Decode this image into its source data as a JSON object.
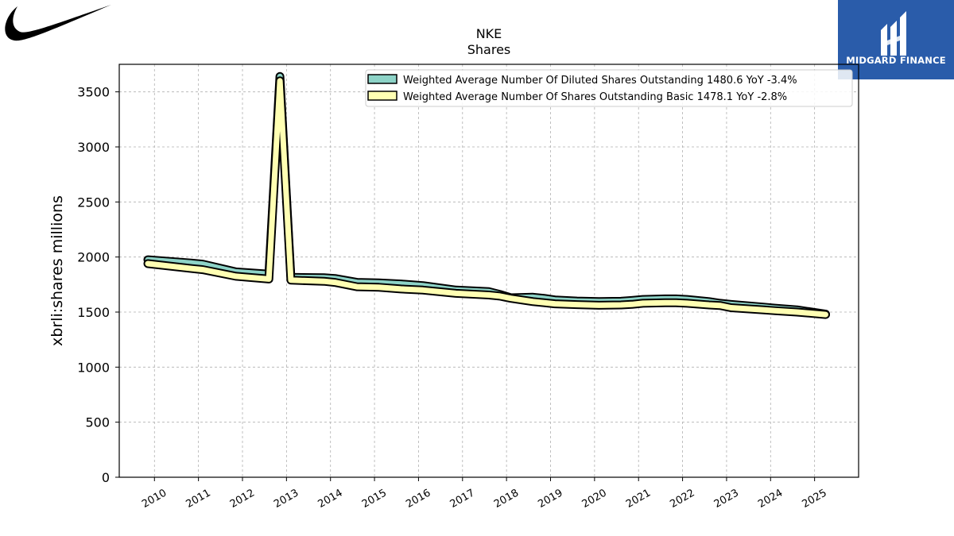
{
  "chart_data": {
    "type": "line",
    "title": "NKE",
    "subtitle": "Shares",
    "xlabel": "",
    "ylabel": "xbrli:shares millions",
    "ylim": [
      0,
      3750
    ],
    "xlim": [
      2009.2,
      2026.0
    ],
    "yticks": [
      0,
      500,
      1000,
      1500,
      2000,
      2500,
      3000,
      3500
    ],
    "xticks": [
      2010,
      2011,
      2012,
      2013,
      2014,
      2015,
      2016,
      2017,
      2018,
      2019,
      2020,
      2021,
      2022,
      2023,
      2024,
      2025
    ],
    "grid": true,
    "legend_position": "top-right",
    "series": [
      {
        "name": "Weighted Average Number Of Diluted Shares Outstanding",
        "legend_label": "Weighted Average Number Of Diluted Shares Outstanding  1480.6 YoY -3.4%",
        "color": "#8dd3c7",
        "x": [
          2009.85,
          2010.85,
          2011.1,
          2011.85,
          2012.6,
          2012.85,
          2013.1,
          2013.85,
          2014.1,
          2014.6,
          2015.1,
          2015.6,
          2016.1,
          2016.85,
          2017.6,
          2017.85,
          2018.1,
          2018.6,
          2018.85,
          2019.1,
          2019.6,
          2020.1,
          2020.6,
          2020.85,
          2021.1,
          2021.6,
          2021.85,
          2022.1,
          2022.6,
          2022.85,
          2023.1,
          2023.85,
          2024.1,
          2024.6,
          2025.25
        ],
        "y": [
          1975,
          1945,
          1935,
          1865,
          1845,
          3640,
          1815,
          1812,
          1805,
          1770,
          1765,
          1755,
          1740,
          1700,
          1685,
          1660,
          1630,
          1635,
          1625,
          1610,
          1600,
          1595,
          1598,
          1605,
          1615,
          1620,
          1620,
          1615,
          1595,
          1580,
          1570,
          1545,
          1535,
          1520,
          1481
        ]
      },
      {
        "name": "Weighted Average Number Of Shares Outstanding Basic",
        "legend_label": "Weighted Average Number Of Shares Outstanding Basic  1478.1 YoY -2.8%",
        "color": "#ffffb3",
        "x": [
          2009.85,
          2010.85,
          2011.1,
          2011.85,
          2012.6,
          2012.85,
          2013.1,
          2013.85,
          2014.1,
          2014.6,
          2015.1,
          2015.6,
          2016.1,
          2016.85,
          2017.6,
          2017.85,
          2018.1,
          2018.6,
          2018.85,
          2019.1,
          2019.6,
          2020.1,
          2020.6,
          2020.85,
          2021.1,
          2021.6,
          2021.85,
          2022.1,
          2022.6,
          2022.85,
          2023.1,
          2023.85,
          2024.1,
          2024.6,
          2025.25
        ],
        "y": [
          1940,
          1895,
          1885,
          1825,
          1800,
          3600,
          1790,
          1780,
          1770,
          1730,
          1725,
          1710,
          1700,
          1670,
          1655,
          1645,
          1625,
          1595,
          1585,
          1575,
          1568,
          1562,
          1565,
          1570,
          1580,
          1585,
          1585,
          1580,
          1565,
          1560,
          1540,
          1520,
          1512,
          1500,
          1478
        ]
      }
    ]
  },
  "branding": {
    "logo_left": "nike-swoosh",
    "logo_right_text": "MIDGARD FINANCE",
    "logo_right_bg": "#2a5caa"
  }
}
